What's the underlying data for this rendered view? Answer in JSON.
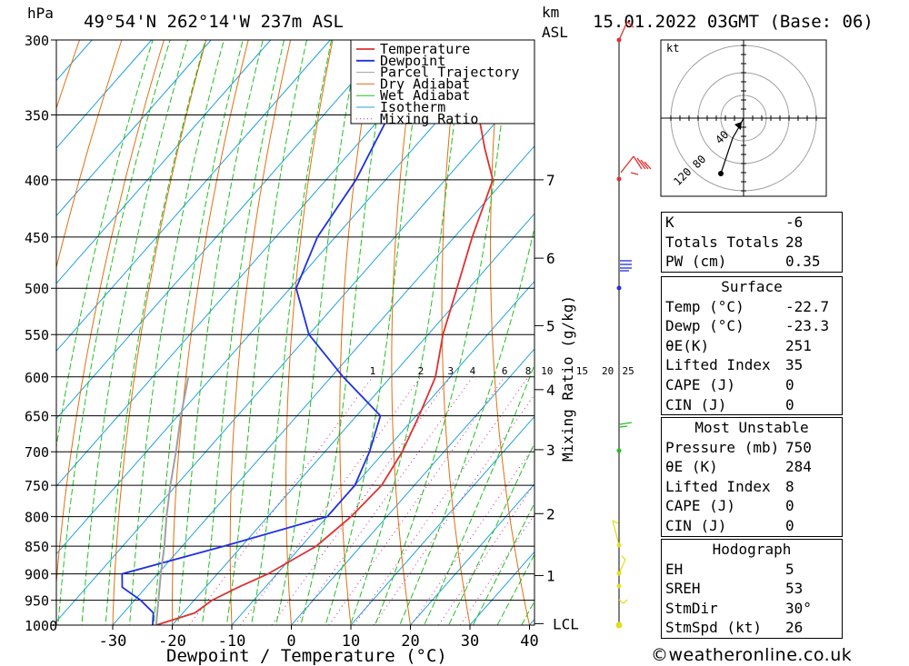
{
  "header": {
    "station": "49°54'N 262°14'W 237m ASL",
    "date": "15.01.2022 03GMT (Base: 06)",
    "hpa_label": "hPa",
    "km_label": "km",
    "asl_label": "ASL"
  },
  "chart_data": {
    "type": "line",
    "xlabel": "Dewpoint / Temperature (°C)",
    "ylabel": "hPa",
    "right_ylabel": "Mixing Ratio (g/kg)",
    "xlim": [
      -40,
      40
    ],
    "ylim": [
      1000,
      300
    ],
    "pressure_levels": [
      300,
      350,
      400,
      450,
      500,
      550,
      600,
      650,
      700,
      750,
      800,
      850,
      900,
      950,
      1000
    ],
    "x_ticks": [
      -30,
      -20,
      -10,
      0,
      10,
      20,
      30,
      40
    ],
    "km_ticks": [
      {
        "label": "7",
        "p": 400
      },
      {
        "label": "6",
        "p": 470
      },
      {
        "label": "5",
        "p": 540
      },
      {
        "label": "4",
        "p": 616
      },
      {
        "label": "3",
        "p": 697
      },
      {
        "label": "2",
        "p": 795
      },
      {
        "label": "1",
        "p": 903
      },
      {
        "label": "LCL",
        "p": 997
      }
    ],
    "mixing_ratio_labels": [
      "1",
      "2",
      "3",
      "4",
      "6",
      "8",
      "10",
      "15",
      "20",
      "25"
    ],
    "mixing_ratio_values": [
      1,
      2,
      3,
      4,
      6,
      8,
      10,
      15,
      20,
      25
    ],
    "legend": [
      "Temperature",
      "Dewpoint",
      "Parcel Trajectory",
      "Dry Adiabat",
      "Wet Adiabat",
      "Isotherm",
      "Mixing Ratio"
    ],
    "legend_position": "top-right",
    "series": [
      {
        "name": "Temperature",
        "color": "#e03030",
        "points": [
          [
            1000,
            -22.7
          ],
          [
            975,
            -18
          ],
          [
            950,
            -17
          ],
          [
            925,
            -14.5
          ],
          [
            900,
            -11.5
          ],
          [
            850,
            -7.5
          ],
          [
            800,
            -6
          ],
          [
            750,
            -5.5
          ],
          [
            700,
            -7
          ],
          [
            650,
            -9.5
          ],
          [
            600,
            -12.5
          ],
          [
            550,
            -17.5
          ],
          [
            500,
            -22
          ],
          [
            450,
            -27
          ],
          [
            400,
            -32
          ],
          [
            375,
            -38
          ],
          [
            350,
            -44
          ],
          [
            300,
            -56
          ]
        ]
      },
      {
        "name": "Dewpoint",
        "color": "#2030e0",
        "points": [
          [
            1000,
            -23.3
          ],
          [
            975,
            -25
          ],
          [
            950,
            -29
          ],
          [
            925,
            -34
          ],
          [
            900,
            -36
          ],
          [
            850,
            -23
          ],
          [
            800,
            -10
          ],
          [
            750,
            -10
          ],
          [
            700,
            -12.5
          ],
          [
            650,
            -16
          ],
          [
            600,
            -28
          ],
          [
            550,
            -40
          ],
          [
            500,
            -49
          ],
          [
            450,
            -53
          ],
          [
            400,
            -55
          ],
          [
            350,
            -59
          ],
          [
            300,
            -67
          ]
        ]
      },
      {
        "name": "Parcel Trajectory",
        "color": "#a0a0a0",
        "points": [
          [
            1000,
            -22.7
          ],
          [
            950,
            -26
          ],
          [
            900,
            -29.5
          ],
          [
            850,
            -33
          ],
          [
            800,
            -37
          ],
          [
            750,
            -41
          ],
          [
            700,
            -45
          ],
          [
            650,
            -49.5
          ],
          [
            600,
            -54
          ]
        ]
      }
    ],
    "colors": {
      "temperature": "#e03030",
      "dewpoint": "#2030e0",
      "parcel": "#a0a0a0",
      "dry_adiabat": "#e07010",
      "wet_adiabat": "#20c020",
      "isotherm": "#20a0e0",
      "mixing_ratio": "#d020a0"
    }
  },
  "hodograph": {
    "unit": "kt",
    "ring_labels": [
      "40",
      "80",
      "120"
    ]
  },
  "indices": {
    "rows": [
      {
        "label": "K",
        "value": "-6"
      },
      {
        "label": "Totals Totals",
        "value": "28"
      },
      {
        "label": "PW (cm)",
        "value": "0.35"
      }
    ]
  },
  "surface": {
    "title": "Surface",
    "rows": [
      {
        "label": "Temp (°C)",
        "value": "-22.7"
      },
      {
        "label": "Dewp (°C)",
        "value": "-23.3"
      },
      {
        "label": "θE(K)",
        "value": "251"
      },
      {
        "label": "Lifted Index",
        "value": "35"
      },
      {
        "label": "CAPE (J)",
        "value": "0"
      },
      {
        "label": "CIN (J)",
        "value": "0"
      }
    ]
  },
  "most_unstable": {
    "title": "Most Unstable",
    "rows": [
      {
        "label": "Pressure (mb)",
        "value": "750"
      },
      {
        "label": "θE (K)",
        "value": "284"
      },
      {
        "label": "Lifted Index",
        "value": "8"
      },
      {
        "label": "CAPE (J)",
        "value": "0"
      },
      {
        "label": "CIN (J)",
        "value": "0"
      }
    ]
  },
  "hodograph_table": {
    "title": "Hodograph",
    "rows": [
      {
        "label": "EH",
        "value": "5"
      },
      {
        "label": "SREH",
        "value": "53"
      },
      {
        "label": "StmDir",
        "value": "30°"
      },
      {
        "label": "StmSpd (kt)",
        "value": "26"
      }
    ]
  },
  "footer": {
    "copyright": "©weatheronline.co.uk"
  }
}
